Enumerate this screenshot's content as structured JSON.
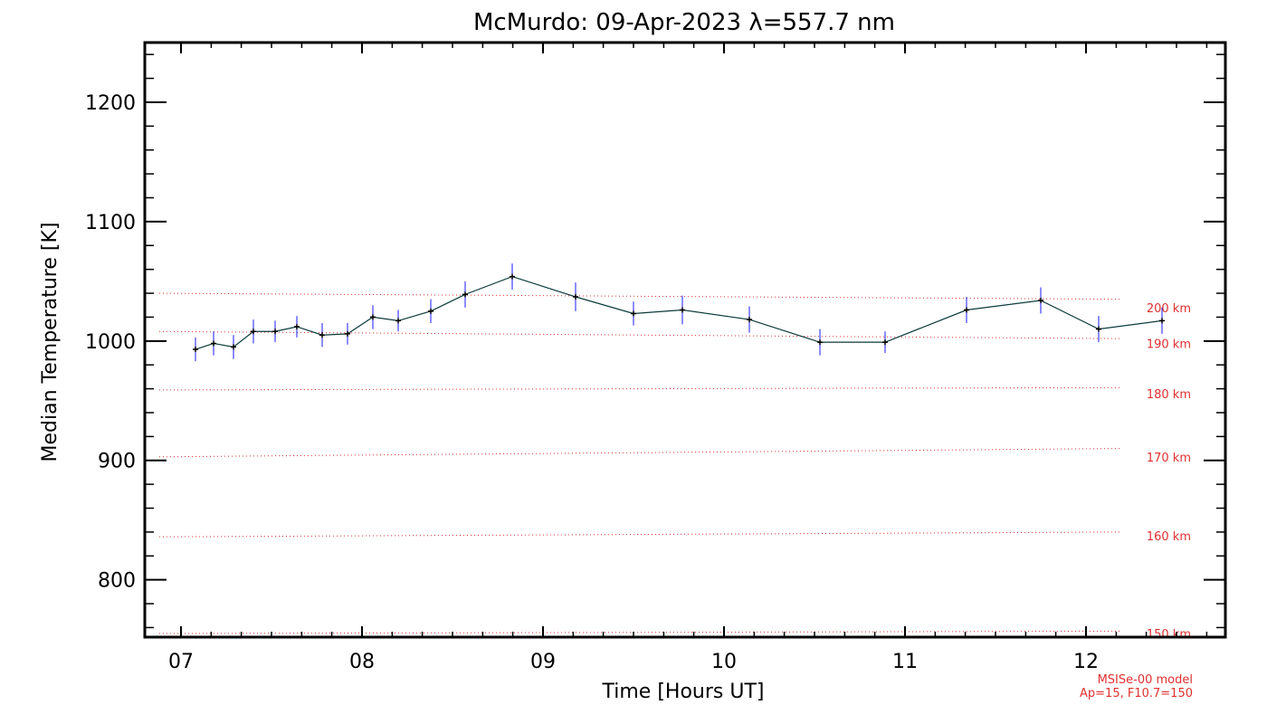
{
  "colors": {
    "data_line": "#0b3a3a",
    "marker": "#000000",
    "error_bar": "#1a1aff",
    "model_line": "#e03030",
    "axis": "#000000"
  },
  "chart_data": {
    "type": "line",
    "title": "McMurdo: 09-Apr-2023 λ=557.7 nm",
    "xlabel": "Time [Hours UT]",
    "ylabel": "Median Temperature [K]",
    "xlim": [
      6.8,
      12.77
    ],
    "ylim": [
      752,
      1250
    ],
    "x_ticks": [
      7,
      8,
      9,
      10,
      11,
      12
    ],
    "x_tick_labels": [
      "07",
      "08",
      "09",
      "10",
      "11",
      "12"
    ],
    "y_ticks": [
      800,
      900,
      1000,
      1100,
      1200
    ],
    "y_tick_labels": [
      "800",
      "900",
      "1000",
      "1100",
      "1200"
    ],
    "series": [
      {
        "name": "Median Temperature",
        "x": [
          7.08,
          7.18,
          7.29,
          7.4,
          7.52,
          7.64,
          7.78,
          7.92,
          8.06,
          8.2,
          8.38,
          8.57,
          8.83,
          9.18,
          9.5,
          9.77,
          10.14,
          10.53,
          10.89,
          11.34,
          11.75,
          12.07,
          12.42
        ],
        "y": [
          993,
          998,
          995,
          1008,
          1008,
          1012,
          1005,
          1006,
          1020,
          1017,
          1025,
          1039,
          1054,
          1037,
          1023,
          1026,
          1018,
          999,
          999,
          1026,
          1034,
          1010,
          1017
        ],
        "err": [
          10,
          10,
          10,
          10,
          9,
          9,
          10,
          9,
          10,
          9,
          10,
          11,
          11,
          12,
          10,
          12,
          11,
          11,
          9,
          11,
          11,
          11,
          11
        ]
      }
    ],
    "model_lines": [
      {
        "label": "150 km",
        "x": [
          6.88,
          12.2
        ],
        "y": [
          755,
          757
        ]
      },
      {
        "label": "160 km",
        "x": [
          6.88,
          12.2
        ],
        "y": [
          836,
          840
        ]
      },
      {
        "label": "170 km",
        "x": [
          6.88,
          12.2
        ],
        "y": [
          903,
          910
        ]
      },
      {
        "label": "180 km",
        "x": [
          6.88,
          12.2
        ],
        "y": [
          959,
          961
        ]
      },
      {
        "label": "190 km",
        "x": [
          6.88,
          12.2
        ],
        "y": [
          1008,
          1002
        ]
      },
      {
        "label": "200 km",
        "x": [
          6.88,
          12.2
        ],
        "y": [
          1040,
          1035
        ]
      }
    ],
    "model_line_label_y": [
      755,
      837,
      903,
      956,
      998,
      1028
    ],
    "model_annotation": [
      "MSISe-00 model",
      "Ap=15, F10.7=150"
    ]
  }
}
